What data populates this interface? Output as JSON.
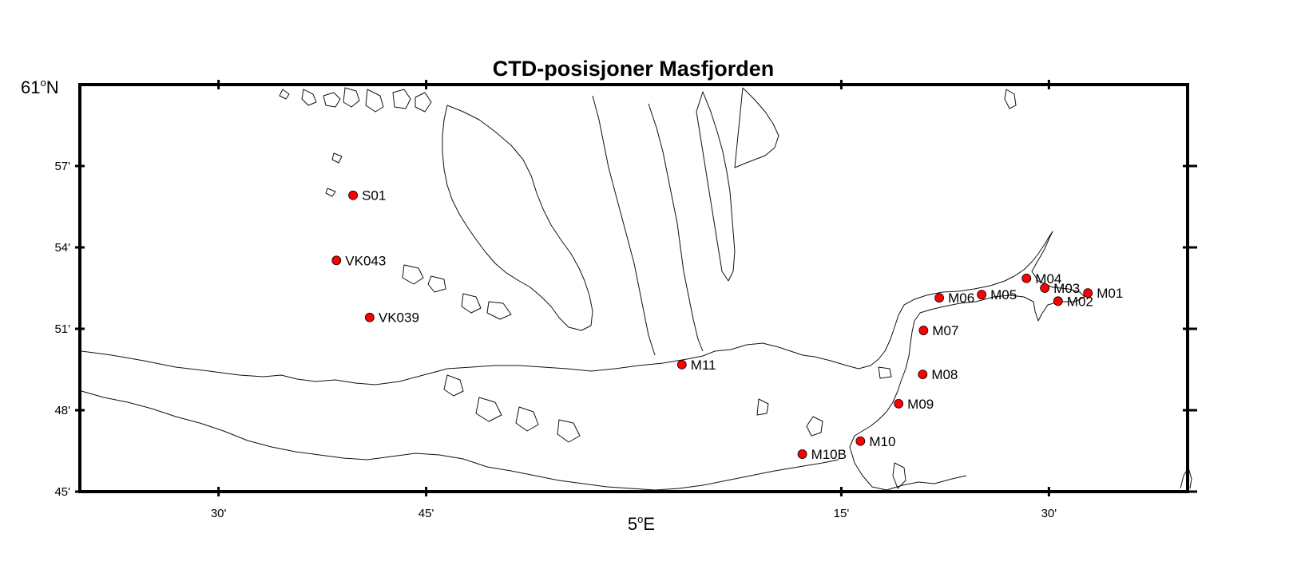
{
  "title": "CTD-posisjoner Masfjorden",
  "axes": {
    "lon_label": "5",
    "lon_label_suffix": "E",
    "lat_label": "61",
    "lat_label_suffix": "N",
    "lon_range_deg": [
      4.333,
      5.667
    ],
    "lat_range_deg": [
      60.75,
      61.0
    ],
    "lon_ticks": [
      {
        "lon": 4.5,
        "label": "30'"
      },
      {
        "lon": 4.75,
        "label": "45'"
      },
      {
        "lon": 5.25,
        "label": "15'"
      },
      {
        "lon": 5.5,
        "label": "30'"
      }
    ],
    "lat_ticks": [
      {
        "lat": 60.95,
        "label": "57'"
      },
      {
        "lat": 60.9,
        "label": "54'"
      },
      {
        "lat": 60.85,
        "label": "51'"
      },
      {
        "lat": 60.8,
        "label": "48'"
      },
      {
        "lat": 60.75,
        "label": "45'"
      }
    ]
  },
  "marker_color": "#ff0000",
  "stations": [
    {
      "name": "S01",
      "lon": 4.662,
      "lat": 60.932
    },
    {
      "name": "VK043",
      "lon": 4.642,
      "lat": 60.892
    },
    {
      "name": "VK039",
      "lon": 4.682,
      "lat": 60.857
    },
    {
      "name": "M11",
      "lon": 5.058,
      "lat": 60.828
    },
    {
      "name": "M10B",
      "lon": 5.203,
      "lat": 60.773
    },
    {
      "name": "M10",
      "lon": 5.273,
      "lat": 60.781
    },
    {
      "name": "M09",
      "lon": 5.319,
      "lat": 60.804
    },
    {
      "name": "M08",
      "lon": 5.348,
      "lat": 60.822
    },
    {
      "name": "M07",
      "lon": 5.349,
      "lat": 60.849
    },
    {
      "name": "M06",
      "lon": 5.368,
      "lat": 60.869
    },
    {
      "name": "M05",
      "lon": 5.419,
      "lat": 60.871
    },
    {
      "name": "M04",
      "lon": 5.473,
      "lat": 60.881
    },
    {
      "name": "M03",
      "lon": 5.495,
      "lat": 60.875
    },
    {
      "name": "M02",
      "lon": 5.511,
      "lat": 60.867
    },
    {
      "name": "M01",
      "lon": 5.547,
      "lat": 60.872
    }
  ]
}
